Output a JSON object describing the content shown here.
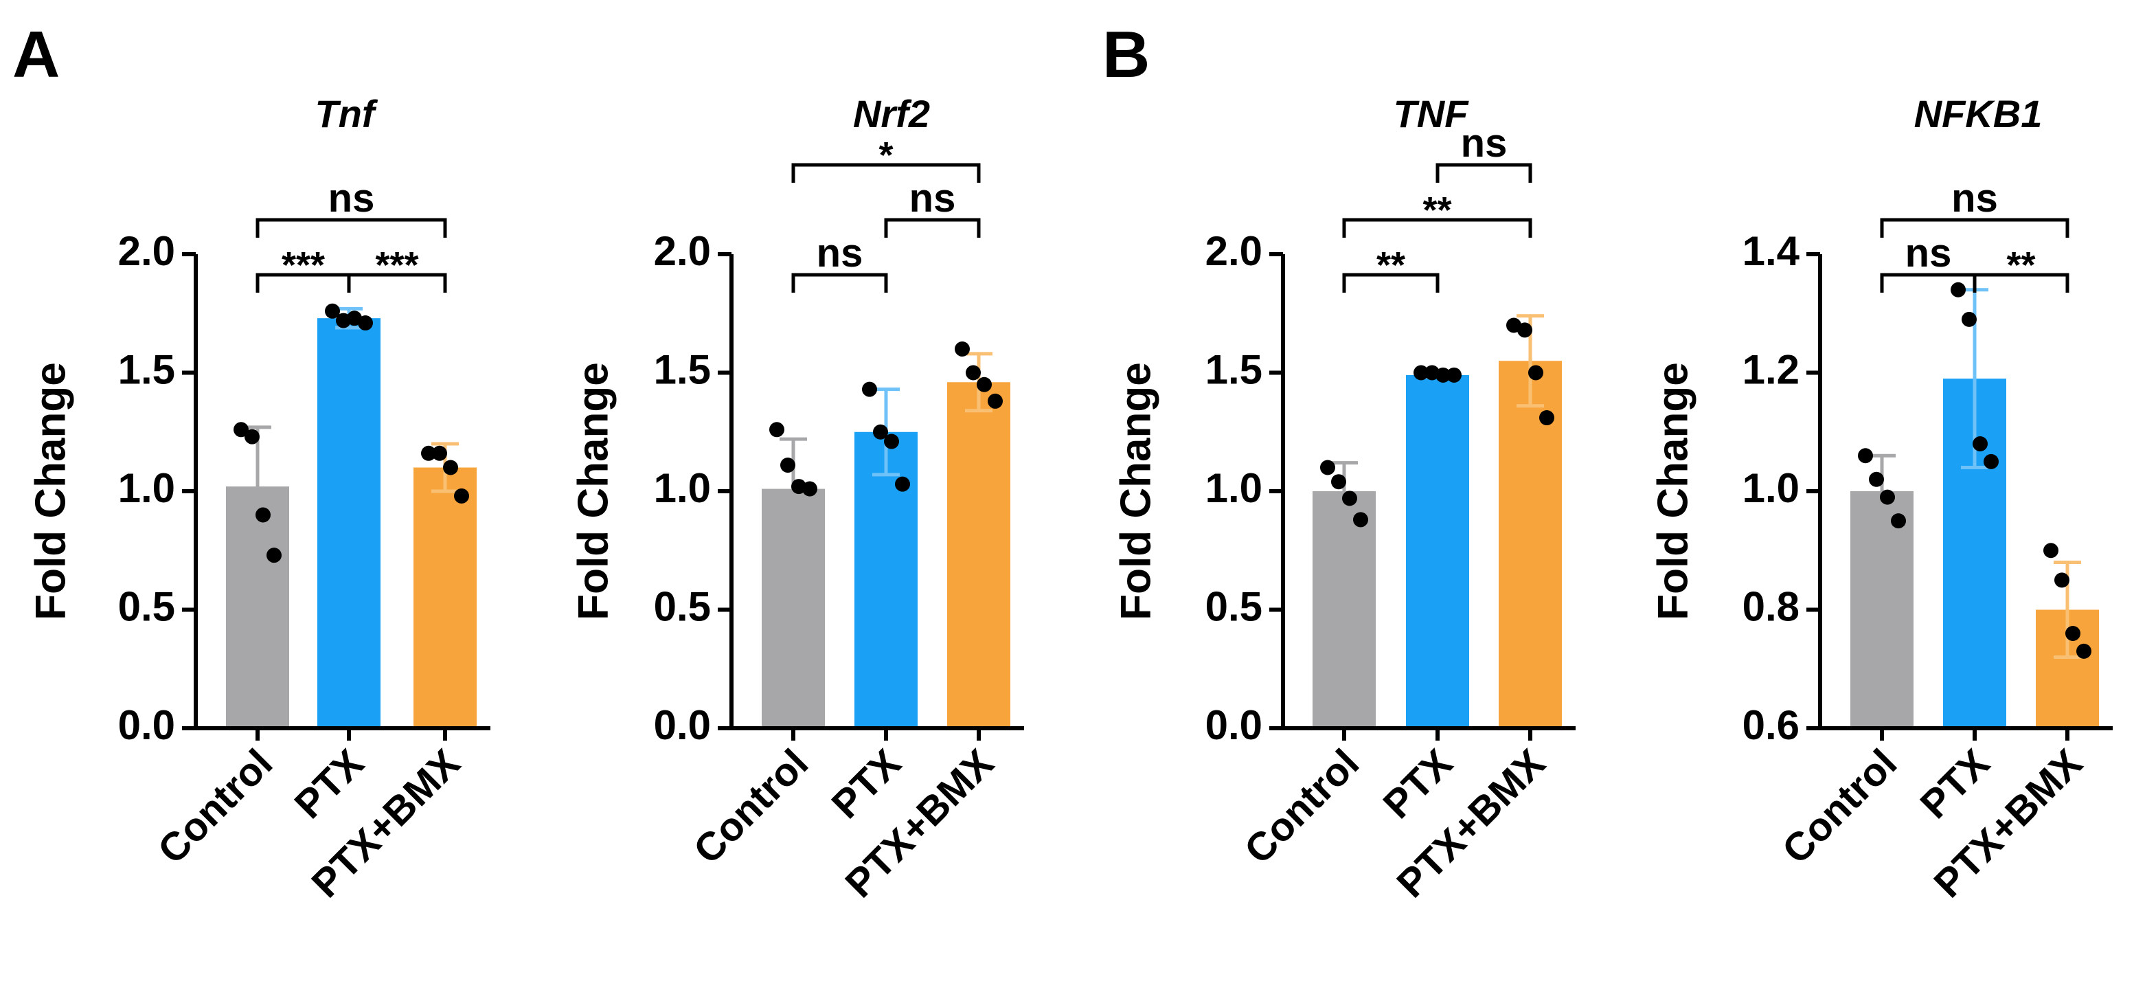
{
  "panels": [
    {
      "letter": "A"
    },
    {
      "letter": "B"
    }
  ],
  "chart_data": [
    {
      "type": "bar",
      "panel": "A",
      "title": "Tnf",
      "ylabel": "Fold Change",
      "categories": [
        "Control",
        "PTX",
        "PTX+BMX"
      ],
      "values": [
        1.02,
        1.73,
        1.1
      ],
      "errors": [
        0.25,
        0.04,
        0.1
      ],
      "points": [
        [
          1.26,
          1.23,
          0.9,
          0.73
        ],
        [
          1.76,
          1.72,
          1.73,
          1.71
        ],
        [
          1.16,
          1.16,
          1.1,
          0.98
        ]
      ],
      "ylim": [
        0,
        2.0
      ],
      "yticks": [
        "0.0",
        "0.5",
        "1.0",
        "1.5",
        "2.0"
      ],
      "colors": [
        "#a7a7aa",
        "#1aa0f5",
        "#f7a43c"
      ],
      "significance": [
        {
          "from": 0,
          "to": 1,
          "label": "***",
          "level": 1
        },
        {
          "from": 1,
          "to": 2,
          "label": "***",
          "level": 1
        },
        {
          "from": 0,
          "to": 2,
          "label": "ns",
          "level": 2
        }
      ]
    },
    {
      "type": "bar",
      "panel": "A",
      "title": "Nrf2",
      "ylabel": "Fold Change",
      "categories": [
        "Control",
        "PTX",
        "PTX+BMX"
      ],
      "values": [
        1.01,
        1.25,
        1.46
      ],
      "errors": [
        0.21,
        0.18,
        0.12
      ],
      "points": [
        [
          1.26,
          1.11,
          1.02,
          1.01
        ],
        [
          1.43,
          1.25,
          1.21,
          1.03
        ],
        [
          1.6,
          1.5,
          1.45,
          1.38
        ]
      ],
      "ylim": [
        0,
        2.0
      ],
      "yticks": [
        "0.0",
        "0.5",
        "1.0",
        "1.5",
        "2.0"
      ],
      "colors": [
        "#a7a7aa",
        "#1aa0f5",
        "#f7a43c"
      ],
      "significance": [
        {
          "from": 0,
          "to": 1,
          "label": "ns",
          "level": 1
        },
        {
          "from": 1,
          "to": 2,
          "label": "ns",
          "level": 2
        },
        {
          "from": 0,
          "to": 2,
          "label": "*",
          "level": 3
        }
      ]
    },
    {
      "type": "bar",
      "panel": "B",
      "title": "TNF",
      "ylabel": "Fold Change",
      "categories": [
        "Control",
        "PTX",
        "PTX+BMX"
      ],
      "values": [
        1.0,
        1.49,
        1.55
      ],
      "errors": [
        0.12,
        0.01,
        0.19
      ],
      "points": [
        [
          1.1,
          1.04,
          0.97,
          0.88
        ],
        [
          1.5,
          1.5,
          1.49,
          1.49
        ],
        [
          1.7,
          1.68,
          1.5,
          1.31
        ]
      ],
      "ylim": [
        0,
        2.0
      ],
      "yticks": [
        "0.0",
        "0.5",
        "1.0",
        "1.5",
        "2.0"
      ],
      "colors": [
        "#a7a7aa",
        "#1aa0f5",
        "#f7a43c"
      ],
      "significance": [
        {
          "from": 0,
          "to": 1,
          "label": "**",
          "level": 1
        },
        {
          "from": 0,
          "to": 2,
          "label": "**",
          "level": 2
        },
        {
          "from": 1,
          "to": 2,
          "label": "ns",
          "level": 3
        }
      ]
    },
    {
      "type": "bar",
      "panel": "B",
      "title": "NFKB1",
      "ylabel": "Fold Change",
      "categories": [
        "Control",
        "PTX",
        "PTX+BMX"
      ],
      "values": [
        1.0,
        1.19,
        0.8
      ],
      "errors": [
        0.06,
        0.15,
        0.08
      ],
      "points": [
        [
          1.06,
          1.02,
          0.99,
          0.95
        ],
        [
          1.34,
          1.29,
          1.08,
          1.05
        ],
        [
          0.9,
          0.85,
          0.76,
          0.73
        ]
      ],
      "ylim": [
        0.6,
        1.4
      ],
      "yticks": [
        "0.6",
        "0.8",
        "1.0",
        "1.2",
        "1.4"
      ],
      "colors": [
        "#a7a7aa",
        "#1aa0f5",
        "#f7a43c"
      ],
      "significance": [
        {
          "from": 0,
          "to": 1,
          "label": "ns",
          "level": 1
        },
        {
          "from": 1,
          "to": 2,
          "label": "**",
          "level": 1
        },
        {
          "from": 0,
          "to": 2,
          "label": "ns",
          "level": 2
        }
      ]
    }
  ]
}
